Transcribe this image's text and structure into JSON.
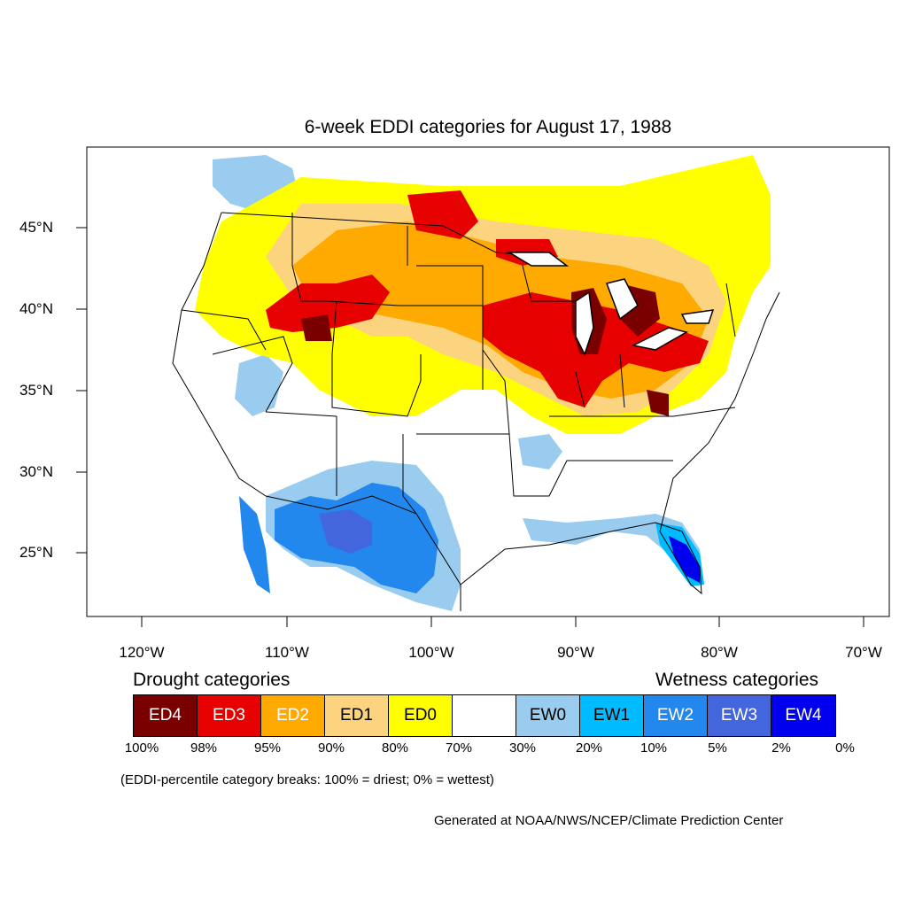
{
  "title": "6-week EDDI categories for August 17, 1988",
  "lat_labels": [
    "45°N",
    "40°N",
    "35°N",
    "30°N",
    "25°N"
  ],
  "lon_labels": [
    "120°W",
    "110°W",
    "100°W",
    "90°W",
    "80°W",
    "70°W"
  ],
  "legend": {
    "drought_heading": "Drought categories",
    "wetness_heading": "Wetness categories",
    "categories": [
      {
        "label": "ED4",
        "color": "#7a0000",
        "text_color": "#ffffff"
      },
      {
        "label": "ED3",
        "color": "#e60000",
        "text_color": "#ffffff"
      },
      {
        "label": "ED2",
        "color": "#ffaa00",
        "text_color": "#ffffff"
      },
      {
        "label": "ED1",
        "color": "#fcd37f",
        "text_color": "#000000"
      },
      {
        "label": "ED0",
        "color": "#ffff00",
        "text_color": "#000000"
      },
      {
        "label": "",
        "color": "#ffffff",
        "text_color": "#000000"
      },
      {
        "label": "EW0",
        "color": "#99ccee",
        "text_color": "#000000"
      },
      {
        "label": "EW1",
        "color": "#00bbff",
        "text_color": "#000000"
      },
      {
        "label": "EW2",
        "color": "#2288ee",
        "text_color": "#ffffff"
      },
      {
        "label": "EW3",
        "color": "#4466dd",
        "text_color": "#ffffff"
      },
      {
        "label": "EW4",
        "color": "#0000ee",
        "text_color": "#ffffff"
      }
    ],
    "percentiles": [
      "100%",
      "98%",
      "95%",
      "90%",
      "80%",
      "70%",
      "30%",
      "20%",
      "10%",
      "5%",
      "2%",
      "0%"
    ]
  },
  "note": "(EDDI-percentile category breaks: 100% = driest; 0% = wettest)",
  "credit": "Generated at NOAA/NWS/NCEP/Climate Prediction Center"
}
